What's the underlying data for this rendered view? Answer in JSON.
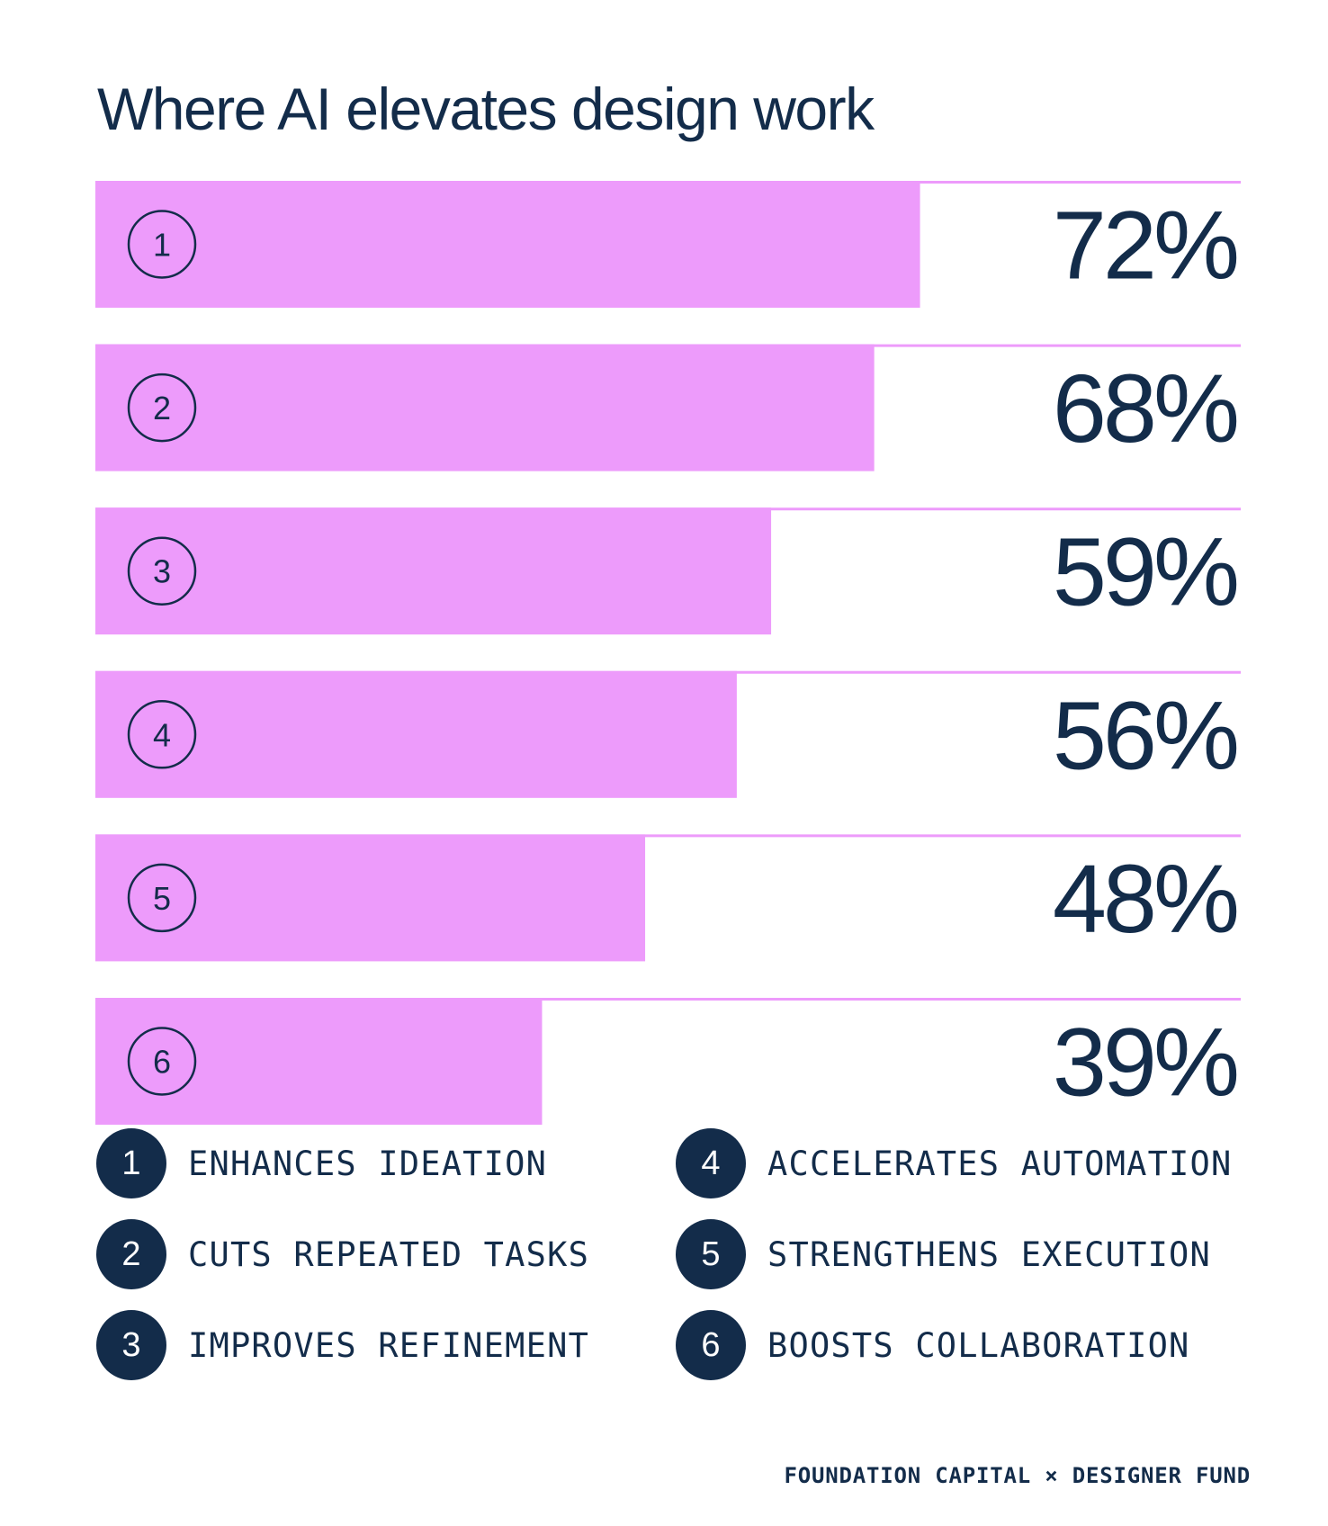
{
  "chart_data": {
    "type": "bar",
    "title": "Where AI elevates design work",
    "categories": [
      "1",
      "2",
      "3",
      "4",
      "5",
      "6"
    ],
    "values": [
      72,
      68,
      59,
      56,
      48,
      39
    ],
    "value_labels": [
      "72%",
      "68%",
      "59%",
      "56%",
      "48%",
      "39%"
    ],
    "xlim": [
      0,
      100
    ],
    "orientation": "horizontal",
    "bar_color": "#ed9bfb",
    "text_color": "#132c4a",
    "legend": [
      {
        "number": "1",
        "label": "ENHANCES IDEATION"
      },
      {
        "number": "2",
        "label": "CUTS REPEATED TASKS"
      },
      {
        "number": "3",
        "label": "IMPROVES REFINEMENT"
      },
      {
        "number": "4",
        "label": "ACCELERATES AUTOMATION"
      },
      {
        "number": "5",
        "label": "STRENGTHENS EXECUTION"
      },
      {
        "number": "6",
        "label": "BOOSTS COLLABORATION"
      }
    ]
  },
  "footer": {
    "credit": "FOUNDATION CAPITAL × DESIGNER FUND"
  }
}
